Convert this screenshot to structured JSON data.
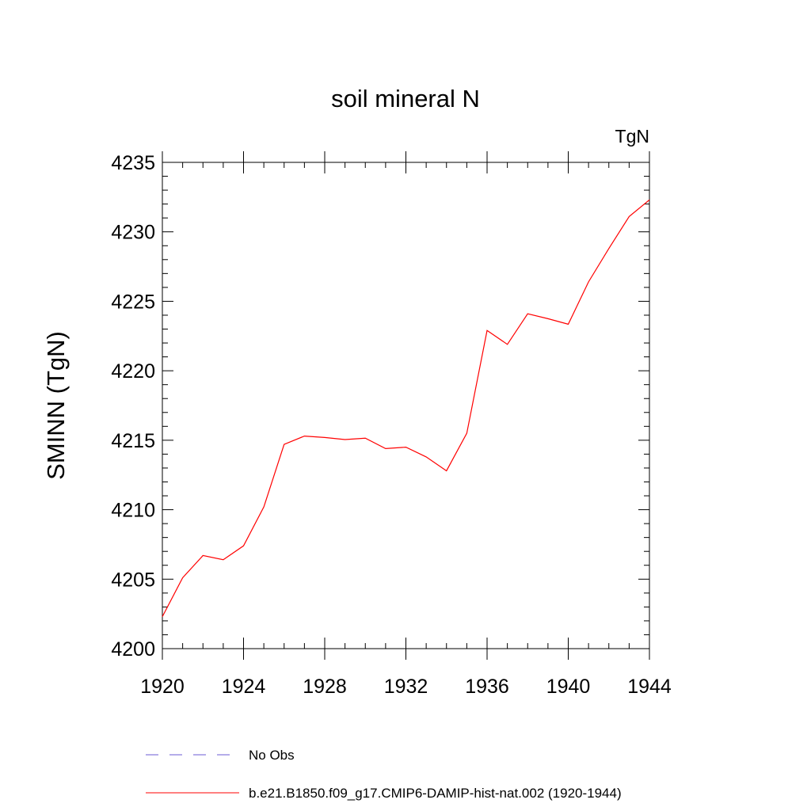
{
  "chart_data": {
    "type": "line",
    "title": "soil mineral N",
    "units_label": "TgN",
    "ylabel": "SMINN  (TgN)",
    "xlabel": "",
    "xlim": [
      1920,
      1944
    ],
    "ylim": [
      4200,
      4235
    ],
    "x_ticks": [
      1920,
      1924,
      1928,
      1932,
      1936,
      1940,
      1944
    ],
    "y_ticks": [
      4200,
      4205,
      4210,
      4215,
      4220,
      4225,
      4230,
      4235
    ],
    "x_tick_labels": [
      "1920",
      "1924",
      "1928",
      "1932",
      "1936",
      "1940",
      "1944"
    ],
    "y_tick_labels": [
      "4200",
      "4205",
      "4210",
      "4215",
      "4220",
      "4225",
      "4230",
      "4235"
    ],
    "grid": false,
    "legend_position": "bottom",
    "series": [
      {
        "name": "b.e21.B1850.f09_g17.CMIP6-DAMIP-hist-nat.002 (1920-1944)",
        "color": "#ff0000",
        "style": "solid",
        "x": [
          1920,
          1921,
          1922,
          1923,
          1924,
          1925,
          1926,
          1927,
          1928,
          1929,
          1930,
          1931,
          1932,
          1933,
          1934,
          1935,
          1936,
          1937,
          1938,
          1939,
          1940,
          1941,
          1942,
          1943,
          1944
        ],
        "y": [
          4202.3,
          4205.1,
          4206.7,
          4206.4,
          4207.4,
          4210.2,
          4214.7,
          4215.3,
          4215.2,
          4215.05,
          4215.15,
          4214.4,
          4214.5,
          4213.8,
          4212.8,
          4215.5,
          4222.9,
          4221.9,
          4224.1,
          4223.75,
          4223.35,
          4226.4,
          4228.8,
          4231.1,
          4232.3
        ]
      }
    ],
    "legend": [
      {
        "label": "No Obs",
        "color": "#6b5bd6",
        "style": "dashed"
      },
      {
        "label": "b.e21.B1850.f09_g17.CMIP6-DAMIP-hist-nat.002 (1920-1944)",
        "color": "#ff0000",
        "style": "solid"
      }
    ]
  }
}
